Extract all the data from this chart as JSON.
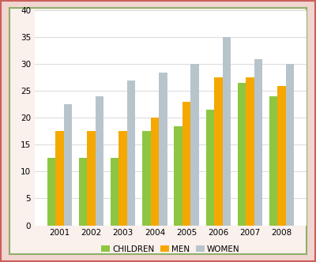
{
  "years": [
    "2001",
    "2002",
    "2003",
    "2004",
    "2005",
    "2006",
    "2007",
    "2008"
  ],
  "children": [
    12.5,
    12.5,
    12.5,
    17.5,
    18.5,
    21.5,
    26.5,
    24.0
  ],
  "men": [
    17.5,
    17.5,
    17.5,
    20.0,
    23.0,
    27.5,
    27.5,
    26.0
  ],
  "women": [
    22.5,
    24.0,
    27.0,
    28.5,
    30.0,
    35.0,
    31.0,
    30.0
  ],
  "colors": {
    "children": "#8DC641",
    "men": "#F5A800",
    "women": "#B8C4CB"
  },
  "legend_labels": [
    "CHILDREN",
    "MEN",
    "WOMEN"
  ],
  "ylim": [
    0,
    40
  ],
  "yticks": [
    0,
    5,
    10,
    15,
    20,
    25,
    30,
    35,
    40
  ],
  "bar_width": 0.26,
  "plot_bg": "#FFFFFF",
  "fig_bg": "#F2D5D0",
  "inner_bg": "#FAF0EC",
  "outer_border_color": "#C9605A",
  "inner_border_color": "#8DB06A",
  "grid_color": "#DDDDDD"
}
